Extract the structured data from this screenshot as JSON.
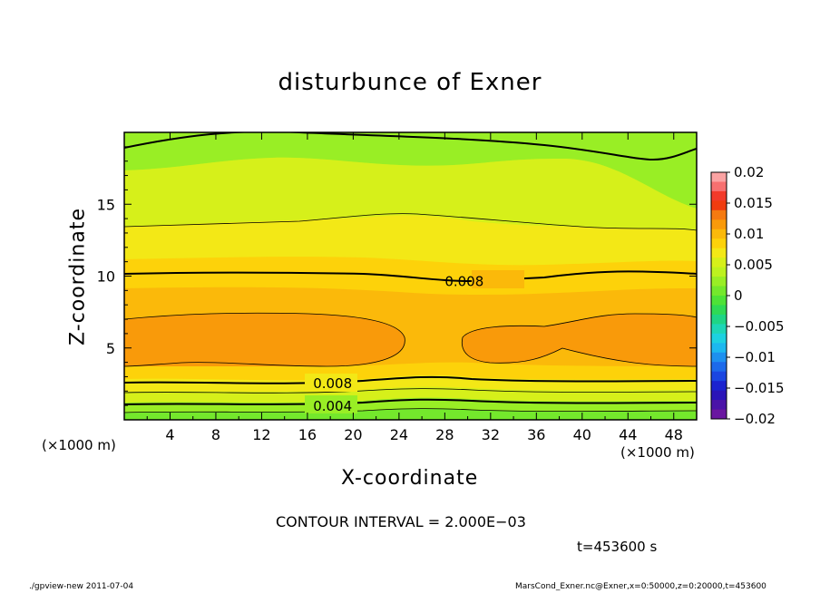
{
  "chart_data": {
    "type": "heatmap",
    "subtype": "filled-contour",
    "title": "disturbunce of Exner",
    "xlabel": "X-coordinate",
    "ylabel": "Z-coordinate",
    "x_unit_left": "(×1000 m)",
    "x_unit_right": "(×1000 m)",
    "xlim": [
      0,
      50
    ],
    "ylim": [
      0,
      20
    ],
    "x_ticks": [
      4,
      8,
      12,
      16,
      20,
      24,
      28,
      32,
      36,
      40,
      44,
      48
    ],
    "x_tick_labels": [
      "4",
      "8",
      "12",
      "16",
      "20",
      "24",
      "28",
      "32",
      "36",
      "40",
      "44",
      "48"
    ],
    "y_ticks": [
      5,
      10,
      15
    ],
    "y_tick_labels": [
      "5",
      "10",
      "15"
    ],
    "colorbar": {
      "levels": [
        0.02,
        0.015,
        0.01,
        0.005,
        0,
        -0.005,
        -0.01,
        -0.015,
        -0.02
      ],
      "labels": [
        "0.02",
        "0.015",
        "0.01",
        "0.005",
        "0",
        "−0.005",
        "−0.01",
        "−0.015",
        "−0.02"
      ],
      "colors": [
        "#fba3a3",
        "#f77070",
        "#f23a2a",
        "#f03c10",
        "#f57a10",
        "#f99a0a",
        "#fbb90a",
        "#fdd20a",
        "#f3e816",
        "#d6f01a",
        "#bdf21f",
        "#99ee25",
        "#74e82c",
        "#4ee237",
        "#2fda55",
        "#1fd585",
        "#1ed6b6",
        "#1dd1e0",
        "#1cb8ef",
        "#1d90ef",
        "#1c6aea",
        "#1a46e1",
        "#1b23cf",
        "#2a14b8",
        "#4a13a8",
        "#6a17a0"
      ]
    },
    "contour_labels": [
      {
        "text": "0.008",
        "x": 29.7,
        "z": 9.7
      },
      {
        "text": "0.008",
        "x": 18.2,
        "z": 2.6
      },
      {
        "text": "0.004",
        "x": 18.2,
        "z": 1.0
      }
    ],
    "contour_interval": "CONTOUR INTERVAL = 2.000E−03",
    "grid": false
  },
  "annotations": {
    "time": "t=453600 s",
    "footer_left": "./gpview-new   2011-07-04",
    "footer_right": "MarsCond_Exner.nc@Exner,x=0:50000,z=0:20000,t=453600"
  }
}
